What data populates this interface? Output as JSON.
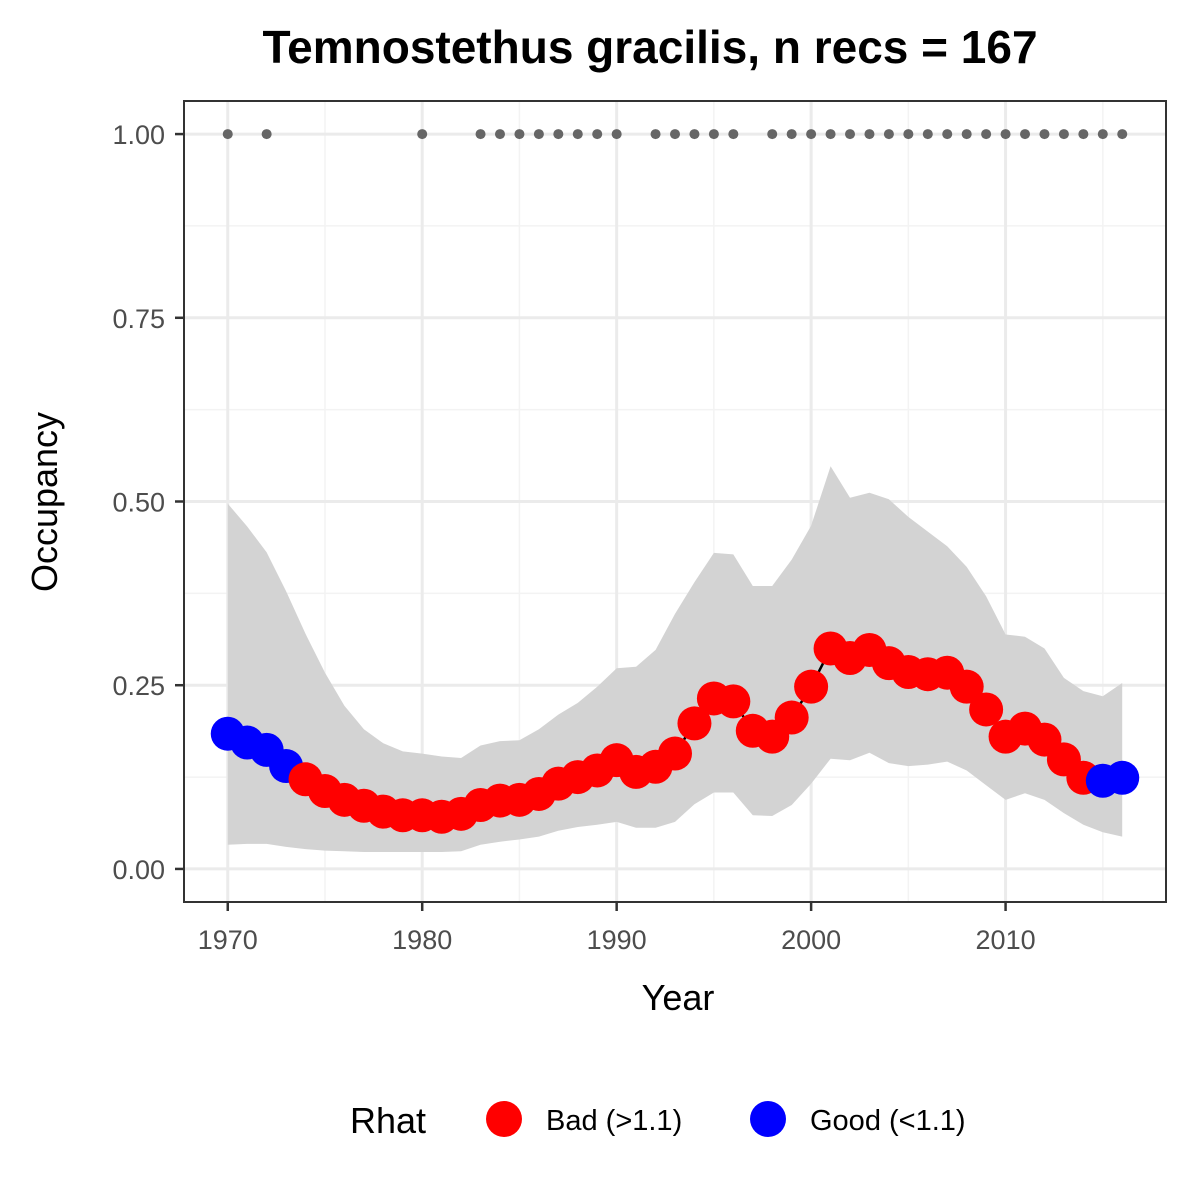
{
  "chart_data": {
    "type": "line",
    "title": "Temnostethus gracilis, n recs = 167",
    "xlabel": "Year",
    "ylabel": "Occupancy",
    "xlim": [
      1967.75,
      2018.25
    ],
    "ylim": [
      -0.045,
      1.045
    ],
    "x_ticks": [
      1970,
      1980,
      1990,
      2000,
      2010
    ],
    "x_tick_labels": [
      "1970",
      "1980",
      "1990",
      "2000",
      "2010"
    ],
    "y_ticks": [
      0,
      0.25,
      0.5,
      0.75,
      1.0
    ],
    "y_tick_labels": [
      "0.00",
      "0.25",
      "0.50",
      "0.75",
      "1.00"
    ],
    "grid": true,
    "colors": {
      "bad": "#ff0000",
      "good": "#0000ff",
      "ribbon": "#d3d3d3",
      "records": "#666666",
      "grid_major": "#ebebeb",
      "grid_minor": "#f3f3f3",
      "border": "#333333"
    },
    "legend": {
      "title": "Rhat",
      "position": "bottom",
      "entries": [
        {
          "label": "Bad (>1.1)",
          "color": "#ff0000"
        },
        {
          "label": "Good (<1.1)",
          "color": "#0000ff"
        }
      ]
    },
    "records_years": [
      1970,
      1972,
      1980,
      1983,
      1984,
      1985,
      1986,
      1987,
      1988,
      1989,
      1990,
      1992,
      1993,
      1994,
      1995,
      1996,
      1998,
      1999,
      2000,
      2001,
      2002,
      2003,
      2004,
      2005,
      2006,
      2007,
      2008,
      2009,
      2010,
      2011,
      2012,
      2013,
      2014,
      2015,
      2016
    ],
    "records_value": 1.0,
    "series": [
      {
        "name": "Occupancy",
        "x": [
          1970,
          1971,
          1972,
          1973,
          1974,
          1975,
          1976,
          1977,
          1978,
          1979,
          1980,
          1981,
          1982,
          1983,
          1984,
          1985,
          1986,
          1987,
          1988,
          1989,
          1990,
          1991,
          1992,
          1993,
          1994,
          1995,
          1996,
          1997,
          1998,
          1999,
          2000,
          2001,
          2002,
          2003,
          2004,
          2005,
          2006,
          2007,
          2008,
          2009,
          2010,
          2011,
          2012,
          2013,
          2014,
          2015,
          2016
        ],
        "y": [
          0.184,
          0.172,
          0.162,
          0.14,
          0.122,
          0.106,
          0.094,
          0.086,
          0.078,
          0.073,
          0.073,
          0.071,
          0.075,
          0.087,
          0.093,
          0.094,
          0.102,
          0.116,
          0.125,
          0.134,
          0.148,
          0.132,
          0.139,
          0.157,
          0.198,
          0.232,
          0.228,
          0.188,
          0.18,
          0.206,
          0.248,
          0.3,
          0.287,
          0.298,
          0.28,
          0.268,
          0.265,
          0.267,
          0.248,
          0.217,
          0.18,
          0.191,
          0.176,
          0.149,
          0.124,
          0.12,
          0.124
        ],
        "lower": [
          0.033,
          0.034,
          0.034,
          0.03,
          0.027,
          0.025,
          0.024,
          0.023,
          0.023,
          0.023,
          0.023,
          0.023,
          0.024,
          0.033,
          0.037,
          0.04,
          0.044,
          0.052,
          0.057,
          0.06,
          0.064,
          0.056,
          0.056,
          0.064,
          0.088,
          0.104,
          0.104,
          0.073,
          0.072,
          0.087,
          0.116,
          0.15,
          0.148,
          0.158,
          0.144,
          0.14,
          0.142,
          0.146,
          0.134,
          0.114,
          0.094,
          0.103,
          0.094,
          0.076,
          0.06,
          0.05,
          0.044
        ],
        "upper": [
          0.497,
          0.466,
          0.431,
          0.378,
          0.32,
          0.267,
          0.222,
          0.19,
          0.171,
          0.16,
          0.157,
          0.153,
          0.151,
          0.168,
          0.174,
          0.175,
          0.19,
          0.21,
          0.226,
          0.248,
          0.273,
          0.275,
          0.298,
          0.347,
          0.39,
          0.43,
          0.428,
          0.385,
          0.385,
          0.421,
          0.467,
          0.548,
          0.505,
          0.512,
          0.503,
          0.479,
          0.459,
          0.439,
          0.411,
          0.371,
          0.319,
          0.316,
          0.3,
          0.26,
          0.242,
          0.235,
          0.253
        ],
        "rhat": [
          "good",
          "good",
          "good",
          "good",
          "bad",
          "bad",
          "bad",
          "bad",
          "bad",
          "bad",
          "bad",
          "bad",
          "bad",
          "bad",
          "bad",
          "bad",
          "bad",
          "bad",
          "bad",
          "bad",
          "bad",
          "bad",
          "bad",
          "bad",
          "bad",
          "bad",
          "bad",
          "bad",
          "bad",
          "bad",
          "bad",
          "bad",
          "bad",
          "bad",
          "bad",
          "bad",
          "bad",
          "bad",
          "bad",
          "bad",
          "bad",
          "bad",
          "bad",
          "bad",
          "bad",
          "good",
          "good"
        ]
      }
    ]
  }
}
